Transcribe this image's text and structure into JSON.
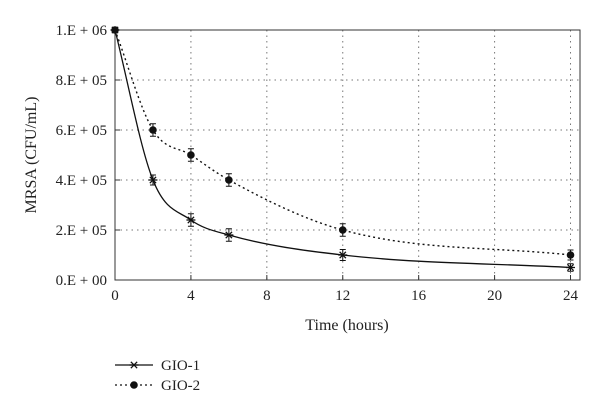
{
  "chart_data": {
    "type": "line",
    "xlabel": "Time (hours)",
    "ylabel": "MRSA (CFU/mL)",
    "xlim": [
      0,
      24.5
    ],
    "ylim": [
      0,
      1000000
    ],
    "x_ticks": [
      0,
      4,
      8,
      12,
      16,
      20,
      24
    ],
    "y_ticks": [
      0,
      200000,
      400000,
      600000,
      800000,
      1000000
    ],
    "y_tick_labels": [
      "0.E + 00",
      "2.E + 05",
      "4.E + 05",
      "6.E + 05",
      "8.E + 05",
      "1.E + 06"
    ],
    "grid": "dotted",
    "legend_position": "bottom-left",
    "series": [
      {
        "name": "GIO-1",
        "marker": "asterisk",
        "line_style": "solid",
        "x": [
          0,
          2,
          4,
          6,
          12,
          24
        ],
        "y": [
          1000000,
          400000,
          240000,
          180000,
          100000,
          50000
        ],
        "error": [
          0,
          20000,
          25000,
          25000,
          22000,
          15000
        ]
      },
      {
        "name": "GIO-2",
        "marker": "circle",
        "line_style": "dotted",
        "x": [
          0,
          2,
          4,
          6,
          12,
          24
        ],
        "y": [
          1000000,
          600000,
          500000,
          400000,
          200000,
          100000
        ],
        "error": [
          0,
          25000,
          25000,
          25000,
          25000,
          20000
        ]
      }
    ]
  }
}
